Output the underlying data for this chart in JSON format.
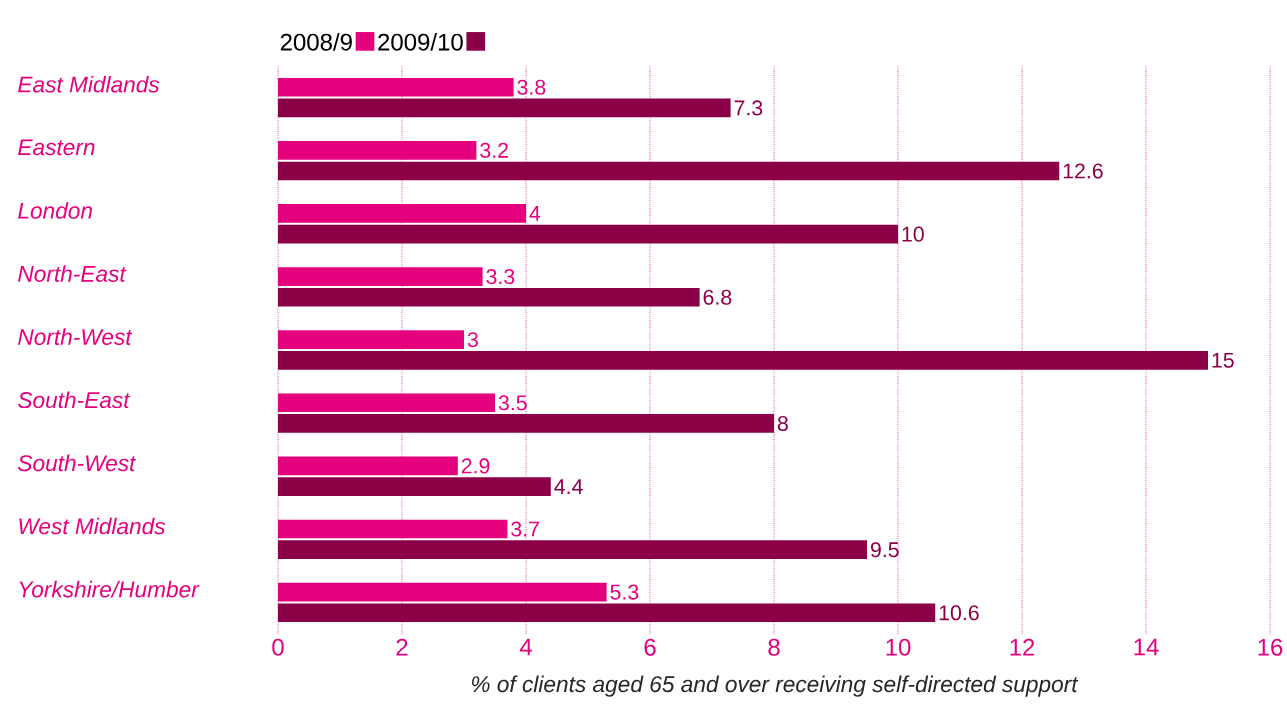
{
  "chart_data": {
    "type": "bar",
    "orientation": "horizontal",
    "categories": [
      "East Midlands",
      "Eastern",
      "London",
      "North-East",
      "North-West",
      "South-East",
      "South-West",
      "West Midlands",
      "Yorkshire/Humber"
    ],
    "series": [
      {
        "name": "2008/9",
        "color": "#e5007d",
        "values": [
          3.8,
          3.2,
          4,
          3.3,
          3,
          3.5,
          2.9,
          3.7,
          5.3
        ]
      },
      {
        "name": "2009/10",
        "color": "#8c0048",
        "values": [
          7.3,
          12.6,
          10,
          6.8,
          15,
          8,
          4.4,
          9.5,
          10.6
        ]
      }
    ],
    "xlim": [
      0,
      16
    ],
    "xticks": [
      0,
      2,
      4,
      6,
      8,
      10,
      12,
      14,
      16
    ],
    "xlabel": "% of clients aged 65 and over receiving self-directed support",
    "grid": "x",
    "legend": "top left",
    "data_labels": true
  }
}
